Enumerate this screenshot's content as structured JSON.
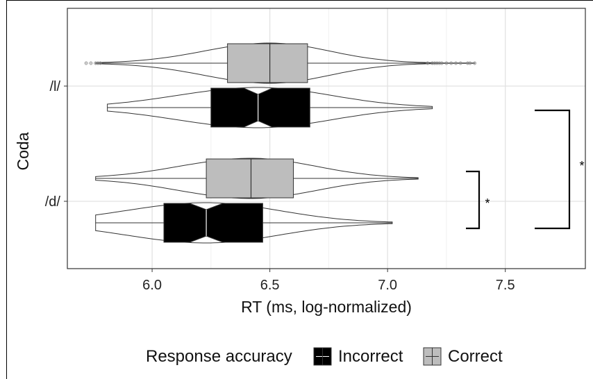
{
  "chart_data": {
    "type": "boxplot-violin",
    "orientation": "horizontal",
    "xlabel": "RT (ms, log-normalized)",
    "ylabel": "Coda",
    "xlim": [
      5.64,
      7.84
    ],
    "x_ticks": [
      6.0,
      6.5,
      7.0,
      7.5
    ],
    "x_tick_labels": [
      "6.0",
      "6.5",
      "7.0",
      "7.5"
    ],
    "categories": [
      "/l/",
      "/d/"
    ],
    "grid": true,
    "legend": {
      "title": "Response accuracy",
      "position": "bottom",
      "entries": [
        {
          "label": "Incorrect",
          "color": "#000000"
        },
        {
          "label": "Correct",
          "color": "#bdbdbd"
        }
      ]
    },
    "series": [
      {
        "name": "Correct",
        "category": "/l/",
        "color": "#bdbdbd",
        "min": 5.76,
        "q1": 6.32,
        "median": 6.5,
        "q3": 6.66,
        "max": 7.37,
        "notch": 0.0,
        "outliers": [
          5.72,
          5.74,
          5.76,
          5.77,
          5.78,
          7.17,
          7.19,
          7.2,
          7.21,
          7.22,
          7.23,
          7.25,
          7.27,
          7.29,
          7.31,
          7.34,
          7.35,
          7.37
        ]
      },
      {
        "name": "Incorrect",
        "category": "/l/",
        "color": "#000000",
        "min": 5.81,
        "q1": 6.25,
        "median": 6.45,
        "q3": 6.67,
        "max": 7.19,
        "notch": 0.06,
        "outliers": []
      },
      {
        "name": "Correct",
        "category": "/d/",
        "color": "#bdbdbd",
        "min": 5.76,
        "q1": 6.23,
        "median": 6.42,
        "q3": 6.6,
        "max": 7.13,
        "notch": 0.0,
        "outliers": []
      },
      {
        "name": "Incorrect",
        "category": "/d/",
        "color": "#000000",
        "min": 5.76,
        "q1": 6.05,
        "median": 6.23,
        "q3": 6.47,
        "max": 7.02,
        "notch": 0.07,
        "outliers": []
      }
    ],
    "annotations": [
      {
        "text": "*",
        "type": "bracket",
        "span": [
          "/d/ Correct",
          "/d/ Incorrect"
        ]
      },
      {
        "text": "*",
        "type": "bracket",
        "span": [
          "/l/ Incorrect",
          "/d/ Incorrect"
        ]
      }
    ]
  }
}
